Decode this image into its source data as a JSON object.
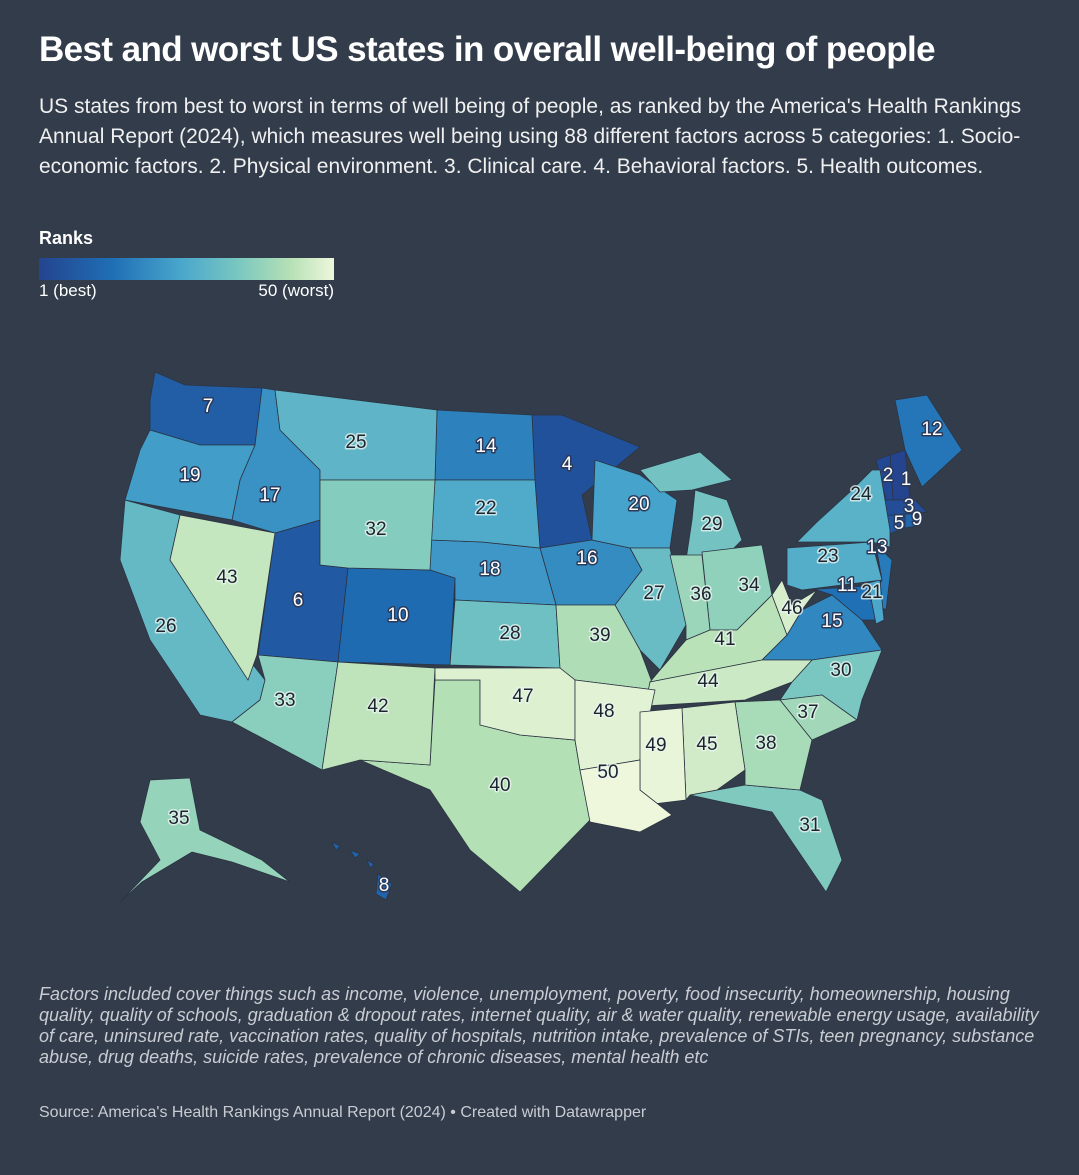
{
  "title": "Best and worst US states in overall well-being of people",
  "subtitle": "US states from best to worst in terms of well being of people, as ranked by the America's Health Rankings Annual Report (2024), which measures well being using 88 different factors across 5 categories: 1. Socio-economic factors. 2. Physical environment. 3. Clinical care. 4. Behavioral factors. 5. Health outcomes.",
  "legend": {
    "title": "Ranks",
    "min_label": "1 (best)",
    "max_label": "50 (worst)",
    "min": 1,
    "max": 50,
    "colors": [
      "#24448f",
      "#1f6fb5",
      "#49a6cc",
      "#7bc8c0",
      "#b5e0b5",
      "#eef7dc"
    ]
  },
  "chart_data": {
    "type": "choropleth",
    "value_name": "Ranks",
    "states": [
      {
        "state": "NH",
        "rank": 1
      },
      {
        "state": "VT",
        "rank": 2
      },
      {
        "state": "MA",
        "rank": 3
      },
      {
        "state": "MN",
        "rank": 4
      },
      {
        "state": "CT",
        "rank": 5
      },
      {
        "state": "UT",
        "rank": 6
      },
      {
        "state": "WA",
        "rank": 7
      },
      {
        "state": "HI",
        "rank": 8
      },
      {
        "state": "RI",
        "rank": 9
      },
      {
        "state": "CO",
        "rank": 10
      },
      {
        "state": "MD",
        "rank": 11
      },
      {
        "state": "ME",
        "rank": 12
      },
      {
        "state": "NJ",
        "rank": 13
      },
      {
        "state": "ND",
        "rank": 14
      },
      {
        "state": "VA",
        "rank": 15
      },
      {
        "state": "IA",
        "rank": 16
      },
      {
        "state": "ID",
        "rank": 17
      },
      {
        "state": "NE",
        "rank": 18
      },
      {
        "state": "OR",
        "rank": 19
      },
      {
        "state": "WI",
        "rank": 20
      },
      {
        "state": "DE",
        "rank": 21
      },
      {
        "state": "SD",
        "rank": 22
      },
      {
        "state": "PA",
        "rank": 23
      },
      {
        "state": "NY",
        "rank": 24
      },
      {
        "state": "MT",
        "rank": 25
      },
      {
        "state": "CA",
        "rank": 26
      },
      {
        "state": "IL",
        "rank": 27
      },
      {
        "state": "KS",
        "rank": 28
      },
      {
        "state": "MI",
        "rank": 29
      },
      {
        "state": "NC",
        "rank": 30
      },
      {
        "state": "FL",
        "rank": 31
      },
      {
        "state": "WY",
        "rank": 32
      },
      {
        "state": "AZ",
        "rank": 33
      },
      {
        "state": "OH",
        "rank": 34
      },
      {
        "state": "AK",
        "rank": 35
      },
      {
        "state": "IN",
        "rank": 36
      },
      {
        "state": "SC",
        "rank": 37
      },
      {
        "state": "GA",
        "rank": 38
      },
      {
        "state": "MO",
        "rank": 39
      },
      {
        "state": "TX",
        "rank": 40
      },
      {
        "state": "KY",
        "rank": 41
      },
      {
        "state": "NM",
        "rank": 42
      },
      {
        "state": "NV",
        "rank": 43
      },
      {
        "state": "TN",
        "rank": 44
      },
      {
        "state": "AL",
        "rank": 45
      },
      {
        "state": "WV",
        "rank": 46
      },
      {
        "state": "OK",
        "rank": 47
      },
      {
        "state": "AR",
        "rank": 48
      },
      {
        "state": "MS",
        "rank": 49
      },
      {
        "state": "LA",
        "rank": 50
      }
    ]
  },
  "note": "Factors included cover things such as income, violence, unemployment, poverty, food insecurity, homeownership, housing quality, quality of schools, graduation & dropout rates, internet quality, air & water quality, renewable energy usage, availability of care, uninsured rate, vaccination rates, quality of hospitals, nutrition intake, prevalence of STIs, teen pregnancy, substance abuse, drug deaths, suicide rates, prevalence of chronic diseases, mental health etc",
  "source": "Source: America's Health Rankings Annual Report (2024) • Created with Datawrapper",
  "background_color": "#323c4b"
}
